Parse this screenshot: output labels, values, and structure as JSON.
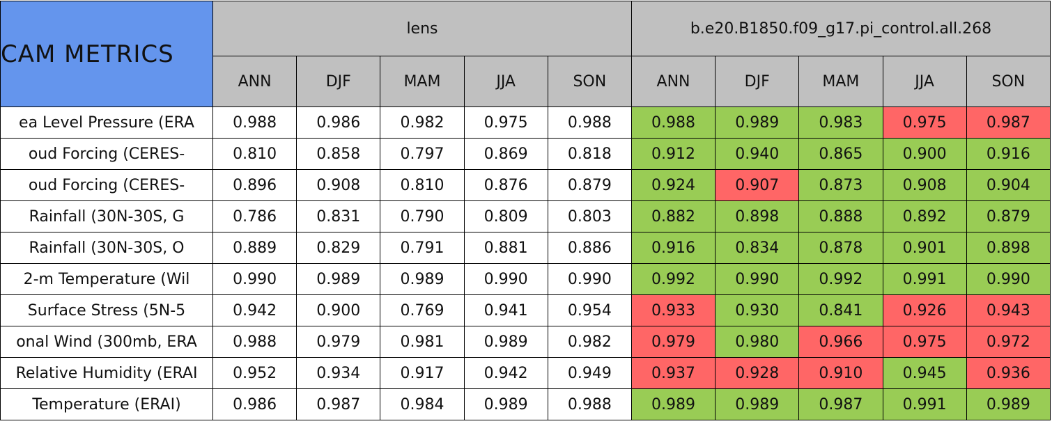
{
  "table": {
    "title": "CAM METRICS",
    "groups": [
      {
        "name": "lens",
        "seasons": [
          "ANN",
          "DJF",
          "MAM",
          "JJA",
          "SON"
        ]
      },
      {
        "name": "b.e20.B1850.f09_g17.pi_control.all.268",
        "seasons": [
          "ANN",
          "DJF",
          "MAM",
          "JJA",
          "SON"
        ]
      }
    ],
    "colors": {
      "good": "#99cc55",
      "bad": "#ff6666",
      "plain": "#ffffff"
    },
    "rows": [
      {
        "label": "ea Level Pressure (ERA",
        "cells": [
          [
            "0.988",
            "0.986",
            "0.982",
            "0.975",
            "0.988"
          ],
          [
            "0.988",
            "0.989",
            "0.983",
            "0.975",
            "0.987"
          ]
        ],
        "status": [
          [
            "plain",
            "plain",
            "plain",
            "plain",
            "plain"
          ],
          [
            "good",
            "good",
            "good",
            "bad",
            "bad"
          ]
        ]
      },
      {
        "label": "oud Forcing (CERES-",
        "cells": [
          [
            "0.810",
            "0.858",
            "0.797",
            "0.869",
            "0.818"
          ],
          [
            "0.912",
            "0.940",
            "0.865",
            "0.900",
            "0.916"
          ]
        ],
        "status": [
          [
            "plain",
            "plain",
            "plain",
            "plain",
            "plain"
          ],
          [
            "good",
            "good",
            "good",
            "good",
            "good"
          ]
        ]
      },
      {
        "label": "oud Forcing (CERES-",
        "cells": [
          [
            "0.896",
            "0.908",
            "0.810",
            "0.876",
            "0.879"
          ],
          [
            "0.924",
            "0.907",
            "0.873",
            "0.908",
            "0.904"
          ]
        ],
        "status": [
          [
            "plain",
            "plain",
            "plain",
            "plain",
            "plain"
          ],
          [
            "good",
            "bad",
            "good",
            "good",
            "good"
          ]
        ]
      },
      {
        "label": "Rainfall (30N-30S, G",
        "cells": [
          [
            "0.786",
            "0.831",
            "0.790",
            "0.809",
            "0.803"
          ],
          [
            "0.882",
            "0.898",
            "0.888",
            "0.892",
            "0.879"
          ]
        ],
        "status": [
          [
            "plain",
            "plain",
            "plain",
            "plain",
            "plain"
          ],
          [
            "good",
            "good",
            "good",
            "good",
            "good"
          ]
        ]
      },
      {
        "label": "Rainfall (30N-30S, O",
        "cells": [
          [
            "0.889",
            "0.829",
            "0.791",
            "0.881",
            "0.886"
          ],
          [
            "0.916",
            "0.834",
            "0.878",
            "0.901",
            "0.898"
          ]
        ],
        "status": [
          [
            "plain",
            "plain",
            "plain",
            "plain",
            "plain"
          ],
          [
            "good",
            "good",
            "good",
            "good",
            "good"
          ]
        ]
      },
      {
        "label": "2-m Temperature (Wil",
        "cells": [
          [
            "0.990",
            "0.989",
            "0.989",
            "0.990",
            "0.990"
          ],
          [
            "0.992",
            "0.990",
            "0.992",
            "0.991",
            "0.990"
          ]
        ],
        "status": [
          [
            "plain",
            "plain",
            "plain",
            "plain",
            "plain"
          ],
          [
            "good",
            "good",
            "good",
            "good",
            "good"
          ]
        ]
      },
      {
        "label": "Surface Stress (5N-5",
        "cells": [
          [
            "0.942",
            "0.900",
            "0.769",
            "0.941",
            "0.954"
          ],
          [
            "0.933",
            "0.930",
            "0.841",
            "0.926",
            "0.943"
          ]
        ],
        "status": [
          [
            "plain",
            "plain",
            "plain",
            "plain",
            "plain"
          ],
          [
            "bad",
            "good",
            "good",
            "bad",
            "bad"
          ]
        ]
      },
      {
        "label": "onal Wind (300mb, ERA",
        "cells": [
          [
            "0.988",
            "0.979",
            "0.981",
            "0.989",
            "0.982"
          ],
          [
            "0.979",
            "0.980",
            "0.966",
            "0.975",
            "0.972"
          ]
        ],
        "status": [
          [
            "plain",
            "plain",
            "plain",
            "plain",
            "plain"
          ],
          [
            "bad",
            "good",
            "bad",
            "bad",
            "bad"
          ]
        ]
      },
      {
        "label": "Relative Humidity (ERAI",
        "cells": [
          [
            "0.952",
            "0.934",
            "0.917",
            "0.942",
            "0.949"
          ],
          [
            "0.937",
            "0.928",
            "0.910",
            "0.945",
            "0.936"
          ]
        ],
        "status": [
          [
            "plain",
            "plain",
            "plain",
            "plain",
            "plain"
          ],
          [
            "bad",
            "bad",
            "bad",
            "good",
            "bad"
          ]
        ]
      },
      {
        "label": "Temperature (ERAI)",
        "cells": [
          [
            "0.986",
            "0.987",
            "0.984",
            "0.989",
            "0.988"
          ],
          [
            "0.989",
            "0.989",
            "0.987",
            "0.991",
            "0.989"
          ]
        ],
        "status": [
          [
            "plain",
            "plain",
            "plain",
            "plain",
            "plain"
          ],
          [
            "good",
            "good",
            "good",
            "good",
            "good"
          ]
        ]
      }
    ]
  }
}
